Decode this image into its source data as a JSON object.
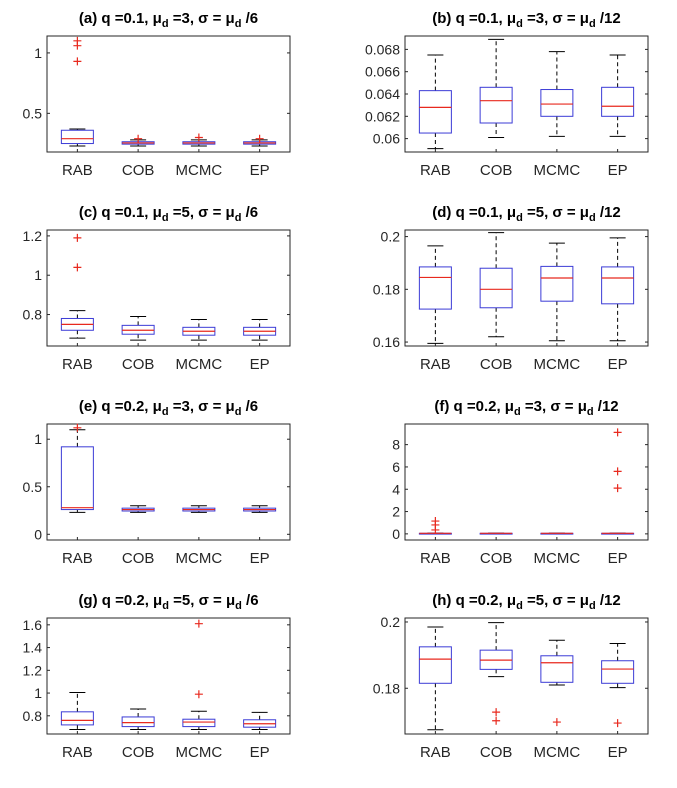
{
  "chart_data": [
    {
      "type": "box",
      "panel": "(a)",
      "title_parts": [
        "(a) q =0.1, ",
        "μ",
        "d",
        " =3, σ = ",
        "μ",
        "d",
        " /6"
      ],
      "categories": [
        "RAB",
        "COB",
        "MCMC",
        "EP"
      ],
      "ylim": [
        0.18,
        1.14
      ],
      "yticks": [
        0.5,
        1
      ],
      "ytick_labels": [
        "0.5",
        "1"
      ],
      "boxes": [
        {
          "whisker_low": 0.23,
          "q1": 0.25,
          "median": 0.29,
          "q3": 0.36,
          "whisker_high": 0.37,
          "outliers": [
            1.1,
            1.06,
            0.93
          ]
        },
        {
          "whisker_low": 0.23,
          "q1": 0.245,
          "median": 0.255,
          "q3": 0.265,
          "whisker_high": 0.28,
          "outliers": [
            0.29
          ]
        },
        {
          "whisker_low": 0.23,
          "q1": 0.245,
          "median": 0.255,
          "q3": 0.265,
          "whisker_high": 0.28,
          "outliers": [
            0.3
          ]
        },
        {
          "whisker_low": 0.23,
          "q1": 0.245,
          "median": 0.255,
          "q3": 0.265,
          "whisker_high": 0.28,
          "outliers": [
            0.29
          ]
        }
      ]
    },
    {
      "type": "box",
      "panel": "(b)",
      "title_parts": [
        "(b) q =0.1, ",
        "μ",
        "d",
        " =3, σ = ",
        "μ",
        "d",
        " /12"
      ],
      "categories": [
        "RAB",
        "COB",
        "MCMC",
        "EP"
      ],
      "ylim": [
        0.0588,
        0.0692
      ],
      "yticks": [
        0.06,
        0.062,
        0.064,
        0.066,
        0.068
      ],
      "ytick_labels": [
        "0.06",
        "0.062",
        "0.064",
        "0.066",
        "0.068"
      ],
      "boxes": [
        {
          "whisker_low": 0.0591,
          "q1": 0.0605,
          "median": 0.0628,
          "q3": 0.0643,
          "whisker_high": 0.0675,
          "outliers": []
        },
        {
          "whisker_low": 0.0601,
          "q1": 0.0614,
          "median": 0.0634,
          "q3": 0.0646,
          "whisker_high": 0.0689,
          "outliers": []
        },
        {
          "whisker_low": 0.0602,
          "q1": 0.062,
          "median": 0.0631,
          "q3": 0.0644,
          "whisker_high": 0.0678,
          "outliers": []
        },
        {
          "whisker_low": 0.0602,
          "q1": 0.062,
          "median": 0.0629,
          "q3": 0.0646,
          "whisker_high": 0.0675,
          "outliers": []
        }
      ]
    },
    {
      "type": "box",
      "panel": "(c)",
      "title_parts": [
        "(c) q =0.1, ",
        "μ",
        "d",
        " =5, σ = ",
        "μ",
        "d",
        " /6"
      ],
      "categories": [
        "RAB",
        "COB",
        "MCMC",
        "EP"
      ],
      "ylim": [
        0.64,
        1.23
      ],
      "yticks": [
        0.8,
        1.0,
        1.2
      ],
      "ytick_labels": [
        "0.8",
        "1",
        "1.2"
      ],
      "boxes": [
        {
          "whisker_low": 0.68,
          "q1": 0.72,
          "median": 0.75,
          "q3": 0.78,
          "whisker_high": 0.82,
          "outliers": [
            1.19,
            1.04
          ]
        },
        {
          "whisker_low": 0.67,
          "q1": 0.7,
          "median": 0.72,
          "q3": 0.745,
          "whisker_high": 0.79,
          "outliers": []
        },
        {
          "whisker_low": 0.67,
          "q1": 0.695,
          "median": 0.715,
          "q3": 0.735,
          "whisker_high": 0.775,
          "outliers": []
        },
        {
          "whisker_low": 0.67,
          "q1": 0.695,
          "median": 0.715,
          "q3": 0.735,
          "whisker_high": 0.775,
          "outliers": []
        }
      ]
    },
    {
      "type": "box",
      "panel": "(d)",
      "title_parts": [
        "(d) q =0.1, ",
        "μ",
        "d",
        " =5, σ = ",
        "μ",
        "d",
        " /12"
      ],
      "categories": [
        "RAB",
        "COB",
        "MCMC",
        "EP"
      ],
      "ylim": [
        0.1585,
        0.2025
      ],
      "yticks": [
        0.16,
        0.18,
        0.2
      ],
      "ytick_labels": [
        "0.16",
        "0.18",
        "0.2"
      ],
      "boxes": [
        {
          "whisker_low": 0.1595,
          "q1": 0.1725,
          "median": 0.1845,
          "q3": 0.1885,
          "whisker_high": 0.1965,
          "outliers": []
        },
        {
          "whisker_low": 0.162,
          "q1": 0.173,
          "median": 0.18,
          "q3": 0.188,
          "whisker_high": 0.2015,
          "outliers": []
        },
        {
          "whisker_low": 0.1605,
          "q1": 0.1755,
          "median": 0.1843,
          "q3": 0.1887,
          "whisker_high": 0.1975,
          "outliers": []
        },
        {
          "whisker_low": 0.1605,
          "q1": 0.1745,
          "median": 0.1843,
          "q3": 0.1885,
          "whisker_high": 0.1995,
          "outliers": []
        }
      ]
    },
    {
      "type": "box",
      "panel": "(e)",
      "title_parts": [
        "(e) q =0.2, ",
        "μ",
        "d",
        " =3, σ = ",
        "μ",
        "d",
        " /6"
      ],
      "categories": [
        "RAB",
        "COB",
        "MCMC",
        "EP"
      ],
      "ylim": [
        -0.06,
        1.16
      ],
      "yticks": [
        0,
        0.5,
        1
      ],
      "ytick_labels": [
        "0",
        "0.5",
        "1"
      ],
      "boxes": [
        {
          "whisker_low": 0.23,
          "q1": 0.26,
          "median": 0.28,
          "q3": 0.92,
          "whisker_high": 1.1,
          "outliers": [
            1.12
          ]
        },
        {
          "whisker_low": 0.23,
          "q1": 0.245,
          "median": 0.26,
          "q3": 0.275,
          "whisker_high": 0.3,
          "outliers": []
        },
        {
          "whisker_low": 0.23,
          "q1": 0.245,
          "median": 0.26,
          "q3": 0.275,
          "whisker_high": 0.3,
          "outliers": []
        },
        {
          "whisker_low": 0.23,
          "q1": 0.245,
          "median": 0.26,
          "q3": 0.275,
          "whisker_high": 0.3,
          "outliers": []
        }
      ]
    },
    {
      "type": "box",
      "panel": "(f)",
      "title_parts": [
        "(f) q =0.2, ",
        "μ",
        "d",
        " =3, σ = ",
        "μ",
        "d",
        " /12"
      ],
      "categories": [
        "RAB",
        "COB",
        "MCMC",
        "EP"
      ],
      "ylim": [
        -0.55,
        9.85
      ],
      "yticks": [
        0,
        2,
        4,
        6,
        8
      ],
      "ytick_labels": [
        "0",
        "2",
        "4",
        "6",
        "8"
      ],
      "boxes": [
        {
          "whisker_low": 0.05,
          "q1": 0.05,
          "median": 0.05,
          "q3": 0.05,
          "whisker_high": 0.05,
          "outliers": [
            1.15,
            0.8,
            0.35
          ]
        },
        {
          "whisker_low": 0.05,
          "q1": 0.05,
          "median": 0.05,
          "q3": 0.05,
          "whisker_high": 0.05,
          "outliers": []
        },
        {
          "whisker_low": 0.05,
          "q1": 0.05,
          "median": 0.05,
          "q3": 0.05,
          "whisker_high": 0.05,
          "outliers": []
        },
        {
          "whisker_low": 0.05,
          "q1": 0.05,
          "median": 0.05,
          "q3": 0.05,
          "whisker_high": 0.05,
          "outliers": [
            9.1,
            5.6,
            4.1
          ]
        }
      ]
    },
    {
      "type": "box",
      "panel": "(g)",
      "title_parts": [
        "(g) q =0.2, ",
        "μ",
        "d",
        " =5, σ = ",
        "μ",
        "d",
        " /6"
      ],
      "categories": [
        "RAB",
        "COB",
        "MCMC",
        "EP"
      ],
      "ylim": [
        0.64,
        1.66
      ],
      "yticks": [
        0.8,
        1.0,
        1.2,
        1.4,
        1.6
      ],
      "ytick_labels": [
        "0.8",
        "1",
        "1.2",
        "1.4",
        "1.6"
      ],
      "boxes": [
        {
          "whisker_low": 0.68,
          "q1": 0.72,
          "median": 0.76,
          "q3": 0.835,
          "whisker_high": 1.005,
          "outliers": []
        },
        {
          "whisker_low": 0.68,
          "q1": 0.705,
          "median": 0.74,
          "q3": 0.79,
          "whisker_high": 0.86,
          "outliers": []
        },
        {
          "whisker_low": 0.68,
          "q1": 0.705,
          "median": 0.745,
          "q3": 0.77,
          "whisker_high": 0.84,
          "outliers": [
            1.61,
            0.99
          ]
        },
        {
          "whisker_low": 0.68,
          "q1": 0.7,
          "median": 0.73,
          "q3": 0.765,
          "whisker_high": 0.83,
          "outliers": []
        }
      ]
    },
    {
      "type": "box",
      "panel": "(h)",
      "title_parts": [
        "(h) q =0.2, ",
        "μ",
        "d",
        " =5, σ = ",
        "μ",
        "d",
        " /12"
      ],
      "categories": [
        "RAB",
        "COB",
        "MCMC",
        "EP"
      ],
      "ylim": [
        0.1662,
        0.2012
      ],
      "yticks": [
        0.18,
        0.2
      ],
      "ytick_labels": [
        "0.18",
        "0.2"
      ],
      "boxes": [
        {
          "whisker_low": 0.1675,
          "q1": 0.1815,
          "median": 0.1888,
          "q3": 0.1925,
          "whisker_high": 0.1985,
          "outliers": []
        },
        {
          "whisker_low": 0.1835,
          "q1": 0.1857,
          "median": 0.1885,
          "q3": 0.1915,
          "whisker_high": 0.1998,
          "outliers": [
            0.1728,
            0.1702
          ]
        },
        {
          "whisker_low": 0.181,
          "q1": 0.1818,
          "median": 0.1877,
          "q3": 0.1898,
          "whisker_high": 0.1945,
          "outliers": [
            0.1698
          ]
        },
        {
          "whisker_low": 0.1802,
          "q1": 0.1815,
          "median": 0.1858,
          "q3": 0.1883,
          "whisker_high": 0.1935,
          "outliers": [
            0.1695
          ]
        }
      ]
    }
  ],
  "colors": {
    "box": "#3b3bd6",
    "median": "#e8291e",
    "outlier": "#e8291e",
    "whisker": "#000000",
    "axis": "#262626"
  }
}
